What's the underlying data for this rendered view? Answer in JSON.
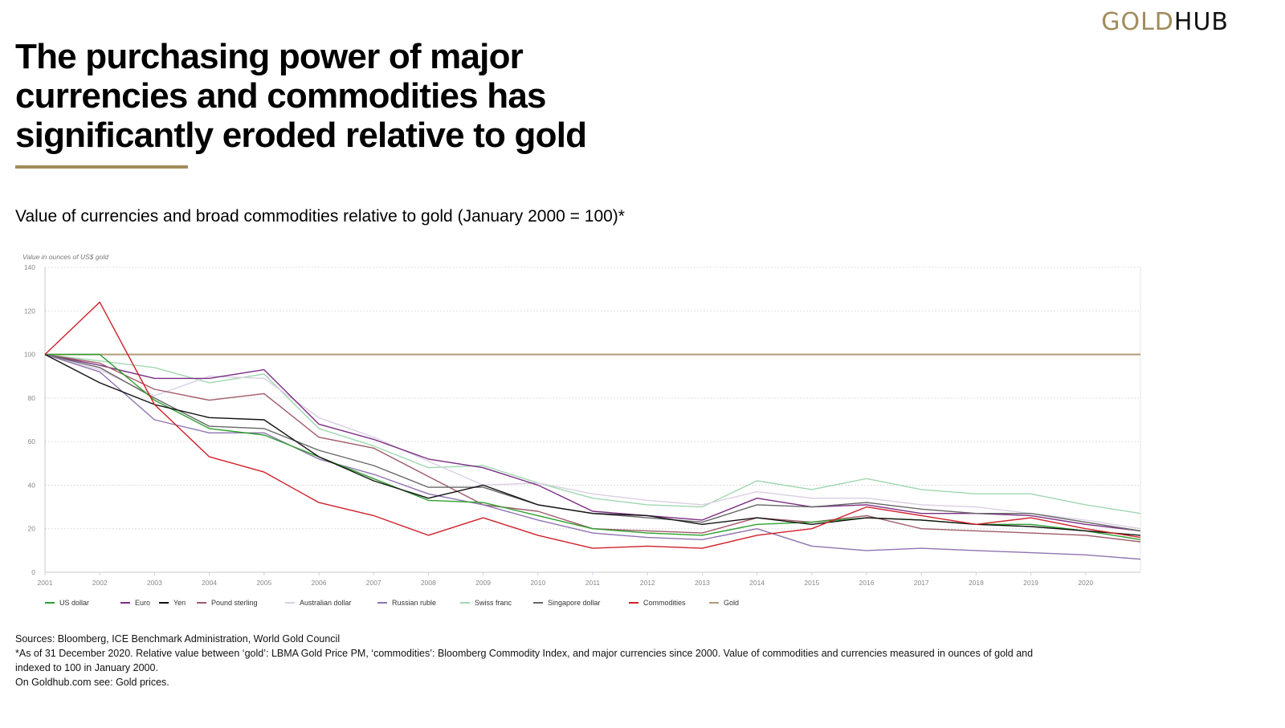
{
  "brand": {
    "part1": "GOLD",
    "part2": "HUB"
  },
  "title_lines": [
    "The purchasing power of major",
    "currencies and commodities has",
    "significantly eroded relative to gold"
  ],
  "accent_color": "#a08c5b",
  "footer": {
    "sources": "Sources: Bloomberg, ICE Benchmark Administration, World Gold Council",
    "note_line1": "*As of 31 December 2020. Relative value between ‘gold’: LBMA Gold Price PM, ‘commodities’: Bloomberg Commodity Index, and major currencies since 2000. Value of commodities and currencies measured in ounces of gold and",
    "note_line2": "indexed to 100 in January 2000.",
    "link_line": "On Goldhub.com see: Gold prices."
  },
  "chart_data": {
    "type": "line",
    "title": "Value of currencies and broad commodities relative to gold (January 2000 = 100)*",
    "ylabel": "Value in ounces of US$ gold",
    "xlabel": "",
    "ylim": [
      0,
      140
    ],
    "yticks": [
      0,
      20,
      40,
      60,
      80,
      100,
      120,
      140
    ],
    "xlim": [
      2001,
      2021
    ],
    "xticks": [
      "2001",
      "2002",
      "2003",
      "2004",
      "2005",
      "2006",
      "2007",
      "2008",
      "2009",
      "2010",
      "2011",
      "2012",
      "2013",
      "2014",
      "2015",
      "2016",
      "2017",
      "2018",
      "2019",
      "2020"
    ],
    "grid": true,
    "legend": "bottom",
    "x": [
      2001,
      2002,
      2003,
      2004,
      2005,
      2006,
      2007,
      2008,
      2009,
      2010,
      2011,
      2012,
      2013,
      2014,
      2015,
      2016,
      2017,
      2018,
      2019,
      2020,
      2021
    ],
    "series": [
      {
        "name": "US dollar",
        "color": "#2ca02c",
        "values": [
          100,
          100,
          79,
          66,
          63,
          53,
          43,
          33,
          32,
          26,
          20,
          18,
          17,
          22,
          23,
          25,
          24,
          22,
          22,
          19,
          15
        ]
      },
      {
        "name": "Euro",
        "color": "#7b2d83",
        "values": [
          100,
          95,
          89,
          89,
          93,
          68,
          61,
          52,
          48,
          40,
          28,
          26,
          24,
          34,
          30,
          31,
          27,
          27,
          26,
          22,
          19
        ]
      },
      {
        "name": "Yen",
        "color": "#111111",
        "values": [
          100,
          87,
          77,
          71,
          70,
          53,
          42,
          34,
          40,
          31,
          27,
          26,
          22,
          25,
          22,
          25,
          24,
          22,
          21,
          19,
          17
        ]
      },
      {
        "name": "Pound sterling",
        "color": "#a05a6a",
        "values": [
          100,
          96,
          84,
          79,
          82,
          62,
          57,
          44,
          31,
          28,
          20,
          19,
          18,
          25,
          23,
          26,
          20,
          19,
          18,
          17,
          14
        ]
      },
      {
        "name": "Australian dollar",
        "color": "#d9cfe3",
        "values": [
          100,
          93,
          81,
          90,
          89,
          71,
          62,
          51,
          40,
          41,
          36,
          33,
          31,
          37,
          34,
          34,
          31,
          30,
          27,
          24,
          20
        ]
      },
      {
        "name": "Russian ruble",
        "color": "#8e74b0",
        "values": [
          100,
          92,
          70,
          64,
          64,
          52,
          45,
          36,
          31,
          24,
          18,
          16,
          15,
          20,
          12,
          10,
          11,
          10,
          9,
          8,
          6
        ]
      },
      {
        "name": "Swiss franc",
        "color": "#9fd8b0",
        "values": [
          100,
          97,
          94,
          87,
          91,
          66,
          58,
          48,
          49,
          41,
          34,
          31,
          30,
          42,
          38,
          43,
          38,
          36,
          36,
          31,
          27
        ]
      },
      {
        "name": "Singapore dollar",
        "color": "#666666",
        "values": [
          100,
          94,
          80,
          67,
          66,
          56,
          49,
          39,
          39,
          31,
          27,
          25,
          23,
          31,
          30,
          32,
          29,
          27,
          27,
          23,
          19
        ]
      },
      {
        "name": "Commodities",
        "color": "#d0202a",
        "values": [
          100,
          124,
          77,
          53,
          46,
          32,
          26,
          17,
          25,
          17,
          11,
          12,
          11,
          17,
          20,
          30,
          26,
          22,
          25,
          20,
          16
        ]
      },
      {
        "name": "Gold",
        "color": "#b09b77",
        "values": [
          100,
          100,
          100,
          100,
          100,
          100,
          100,
          100,
          100,
          100,
          100,
          100,
          100,
          100,
          100,
          100,
          100,
          100,
          100,
          100,
          100
        ]
      }
    ]
  }
}
